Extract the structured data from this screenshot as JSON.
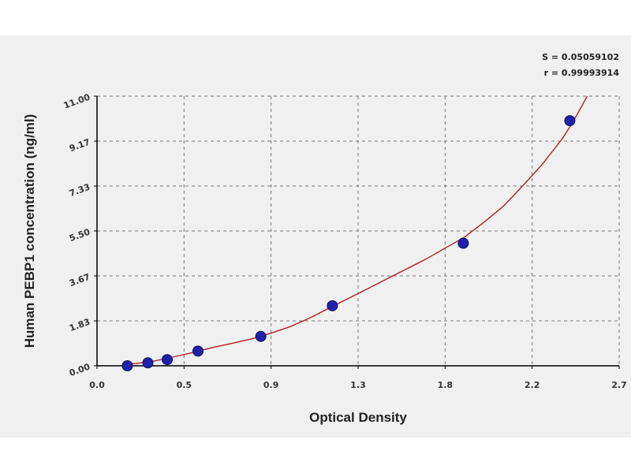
{
  "chart_data": {
    "type": "scatter",
    "xlabel": "Optical Density",
    "ylabel": "Human PEBP1 concentration (ng/ml)",
    "x_tick_labels": [
      "0.0",
      "0.5",
      "0.9",
      "1.3",
      "1.8",
      "2.2",
      "2.7"
    ],
    "y_tick_labels": [
      "0.00",
      "1.83",
      "3.67",
      "5.50",
      "7.33",
      "9.17",
      "11.00"
    ],
    "xlim": [
      0,
      2.7
    ],
    "ylim": [
      0,
      11
    ],
    "grid": true,
    "stats": {
      "s": "S = 0.05059102",
      "r": "r = 0.99993914"
    },
    "points": [
      {
        "x": 0.157,
        "y": 0.0
      },
      {
        "x": 0.263,
        "y": 0.12
      },
      {
        "x": 0.363,
        "y": 0.25
      },
      {
        "x": 0.522,
        "y": 0.6
      },
      {
        "x": 0.847,
        "y": 1.2
      },
      {
        "x": 1.217,
        "y": 2.45
      },
      {
        "x": 1.894,
        "y": 5.0
      },
      {
        "x": 2.445,
        "y": 10.0
      }
    ],
    "curve": [
      {
        "x": 0.14,
        "y": 0.06
      },
      {
        "x": 0.2,
        "y": 0.09
      },
      {
        "x": 0.3,
        "y": 0.2
      },
      {
        "x": 0.4,
        "y": 0.37
      },
      {
        "x": 0.5,
        "y": 0.55
      },
      {
        "x": 0.6,
        "y": 0.75
      },
      {
        "x": 0.7,
        "y": 0.92
      },
      {
        "x": 0.8,
        "y": 1.1
      },
      {
        "x": 0.9,
        "y": 1.33
      },
      {
        "x": 1.0,
        "y": 1.6
      },
      {
        "x": 1.1,
        "y": 1.95
      },
      {
        "x": 1.2,
        "y": 2.35
      },
      {
        "x": 1.3,
        "y": 2.75
      },
      {
        "x": 1.4,
        "y": 3.15
      },
      {
        "x": 1.5,
        "y": 3.55
      },
      {
        "x": 1.6,
        "y": 3.95
      },
      {
        "x": 1.7,
        "y": 4.35
      },
      {
        "x": 1.8,
        "y": 4.8
      },
      {
        "x": 1.9,
        "y": 5.25
      },
      {
        "x": 2.0,
        "y": 5.85
      },
      {
        "x": 2.1,
        "y": 6.5
      },
      {
        "x": 2.2,
        "y": 7.33
      },
      {
        "x": 2.3,
        "y": 8.2
      },
      {
        "x": 2.4,
        "y": 9.2
      },
      {
        "x": 2.45,
        "y": 9.8
      },
      {
        "x": 2.5,
        "y": 10.5
      },
      {
        "x": 2.535,
        "y": 11.0
      }
    ],
    "colors": {
      "point": "#2020aa",
      "curve": "#b02020",
      "grid": "#777777",
      "axis": "#000000"
    }
  }
}
